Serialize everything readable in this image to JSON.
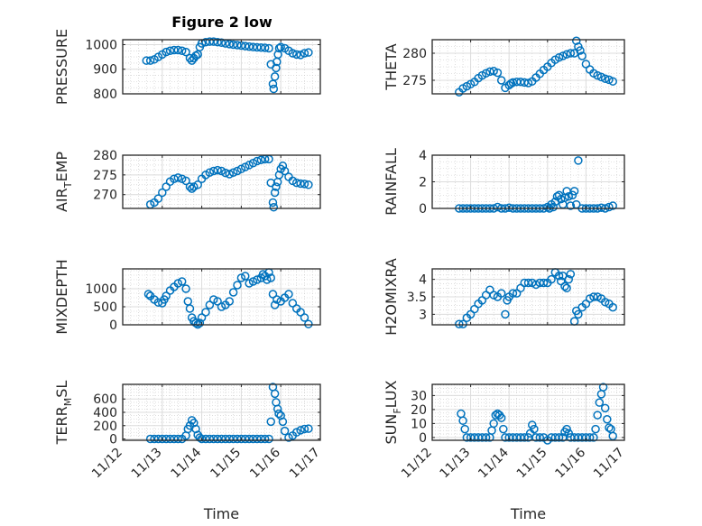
{
  "figure": {
    "title": "Figure 2 low",
    "marker_color": "#0072BD",
    "axes_color": "#262626",
    "grid_color": "#dcdcdc"
  },
  "chart_data": [
    {
      "type": "scatter",
      "id": "pressure",
      "title": "Figure 2 low",
      "ylabel": "PRESSURE",
      "ylabel_main": "PRESSURE",
      "ylabel_sub": "",
      "ylabel_tail": "",
      "xlabel": "",
      "xlim": [
        12,
        17
      ],
      "ylim": [
        800,
        1020
      ],
      "yticks": [
        800,
        900,
        1000
      ],
      "ytick_labels": [
        "800",
        "900",
        "1000"
      ],
      "xticks": [
        12,
        13,
        14,
        15,
        16,
        17
      ],
      "xtick_labels": [],
      "grid": true,
      "minor_grid": true,
      "x": [
        12.6,
        12.7,
        12.8,
        12.9,
        13.0,
        13.1,
        13.2,
        13.3,
        13.4,
        13.5,
        13.6,
        13.7,
        13.75,
        13.8,
        13.85,
        13.9,
        13.95,
        14.0,
        14.1,
        14.2,
        14.3,
        14.4,
        14.5,
        14.6,
        14.7,
        14.8,
        14.9,
        15.0,
        15.1,
        15.2,
        15.3,
        15.4,
        15.5,
        15.6,
        15.7,
        15.75,
        15.8,
        15.82,
        15.85,
        15.88,
        15.9,
        15.93,
        15.96,
        16.0,
        16.1,
        16.2,
        16.3,
        16.4,
        16.5,
        16.6,
        16.7
      ],
      "y": [
        935,
        935,
        940,
        950,
        960,
        970,
        975,
        978,
        978,
        975,
        970,
        945,
        935,
        945,
        955,
        960,
        990,
        1005,
        1010,
        1012,
        1012,
        1010,
        1008,
        1005,
        1002,
        1000,
        998,
        996,
        994,
        992,
        990,
        989,
        988,
        987,
        985,
        920,
        840,
        820,
        870,
        905,
        930,
        960,
        985,
        990,
        985,
        975,
        965,
        960,
        958,
        965,
        968
      ]
    },
    {
      "type": "scatter",
      "id": "theta",
      "ylabel": "THETA",
      "ylabel_main": "THETA",
      "ylabel_sub": "",
      "ylabel_tail": "",
      "xlabel": "",
      "xlim": [
        12,
        17
      ],
      "ylim": [
        272.5,
        282.5
      ],
      "yticks": [
        275,
        280
      ],
      "ytick_labels": [
        "275",
        "280"
      ],
      "xticks": [
        12,
        13,
        14,
        15,
        16,
        17
      ],
      "xtick_labels": [],
      "grid": true,
      "minor_grid": true,
      "x": [
        12.7,
        12.8,
        12.9,
        13.0,
        13.1,
        13.2,
        13.3,
        13.4,
        13.5,
        13.6,
        13.7,
        13.8,
        13.9,
        14.0,
        14.05,
        14.1,
        14.2,
        14.3,
        14.4,
        14.5,
        14.6,
        14.7,
        14.8,
        14.9,
        15.0,
        15.1,
        15.2,
        15.3,
        15.4,
        15.5,
        15.6,
        15.7,
        15.75,
        15.8,
        15.85,
        15.9,
        16.0,
        16.1,
        16.2,
        16.3,
        16.4,
        16.5,
        16.6,
        16.7
      ],
      "y": [
        272.8,
        273.5,
        273.9,
        274.3,
        274.7,
        275.4,
        275.9,
        276.3,
        276.6,
        276.7,
        276.4,
        275.0,
        273.6,
        274.1,
        274.4,
        274.6,
        274.7,
        274.7,
        274.6,
        274.5,
        274.8,
        275.5,
        276.2,
        276.9,
        277.5,
        278.2,
        278.8,
        279.2,
        279.5,
        279.8,
        280.0,
        280.0,
        282.3,
        281.2,
        280.5,
        279.5,
        278.0,
        277.0,
        276.3,
        275.9,
        275.6,
        275.3,
        275.1,
        274.8
      ]
    },
    {
      "type": "scatter",
      "id": "air-temp",
      "ylabel": "AIR_TEMP",
      "ylabel_main": "AIR",
      "ylabel_sub": "T",
      "ylabel_tail": "EMP",
      "xlabel": "",
      "xlim": [
        12,
        17
      ],
      "ylim": [
        266.5,
        280
      ],
      "yticks": [
        270,
        275,
        280
      ],
      "ytick_labels": [
        "270",
        "275",
        "280"
      ],
      "xticks": [
        12,
        13,
        14,
        15,
        16,
        17
      ],
      "xtick_labels": [],
      "grid": true,
      "minor_grid": true,
      "x": [
        12.7,
        12.8,
        12.9,
        13.0,
        13.1,
        13.2,
        13.3,
        13.4,
        13.5,
        13.6,
        13.7,
        13.75,
        13.8,
        13.9,
        14.0,
        14.1,
        14.2,
        14.3,
        14.4,
        14.5,
        14.6,
        14.7,
        14.8,
        14.9,
        15.0,
        15.1,
        15.2,
        15.3,
        15.4,
        15.5,
        15.6,
        15.7,
        15.75,
        15.8,
        15.82,
        15.85,
        15.88,
        15.92,
        15.96,
        16.0,
        16.05,
        16.1,
        16.2,
        16.3,
        16.4,
        16.5,
        16.6,
        16.7
      ],
      "y": [
        267.5,
        268.0,
        269.0,
        270.5,
        272.0,
        273.3,
        274.0,
        274.3,
        274.0,
        273.5,
        272.0,
        271.5,
        272.0,
        272.5,
        274.0,
        275.0,
        275.6,
        276.0,
        276.2,
        276.0,
        275.5,
        275.2,
        275.6,
        276.0,
        276.5,
        277.0,
        277.5,
        278.0,
        278.5,
        278.8,
        279.0,
        279.0,
        273.0,
        268.0,
        266.8,
        270.5,
        272.0,
        273.2,
        275.0,
        276.5,
        277.3,
        276.0,
        274.5,
        273.5,
        273.0,
        272.8,
        272.7,
        272.5
      ]
    },
    {
      "type": "scatter",
      "id": "rainfall",
      "ylabel": "RAINFALL",
      "ylabel_main": "RAINFALL",
      "ylabel_sub": "",
      "ylabel_tail": "",
      "xlabel": "",
      "xlim": [
        12,
        17
      ],
      "ylim": [
        0,
        4
      ],
      "yticks": [
        0,
        2,
        4
      ],
      "ytick_labels": [
        "0",
        "2",
        "4"
      ],
      "xticks": [
        12,
        13,
        14,
        15,
        16,
        17
      ],
      "xtick_labels": [],
      "grid": true,
      "minor_grid": true,
      "x": [
        12.7,
        12.8,
        12.9,
        13.0,
        13.1,
        13.2,
        13.3,
        13.4,
        13.5,
        13.6,
        13.7,
        13.8,
        13.9,
        14.0,
        14.1,
        14.2,
        14.3,
        14.4,
        14.5,
        14.6,
        14.7,
        14.8,
        14.9,
        15.0,
        15.05,
        15.1,
        15.15,
        15.2,
        15.25,
        15.3,
        15.35,
        15.4,
        15.45,
        15.5,
        15.55,
        15.6,
        15.65,
        15.7,
        15.75,
        15.8,
        15.9,
        16.0,
        16.1,
        16.2,
        16.3,
        16.4,
        16.5,
        16.6,
        16.7
      ],
      "y": [
        0,
        0,
        0,
        0,
        0,
        0,
        0,
        0,
        0,
        0,
        0.1,
        0,
        0,
        0.05,
        0,
        0,
        0,
        0,
        0,
        0,
        0,
        0,
        0,
        0.1,
        0,
        0.3,
        0.1,
        0.5,
        0.9,
        1.0,
        0.7,
        0.3,
        0.8,
        1.3,
        0.9,
        0.2,
        1.0,
        1.3,
        0.3,
        3.6,
        0,
        0,
        0,
        0,
        0,
        0.05,
        0,
        0.1,
        0.2
      ]
    },
    {
      "type": "scatter",
      "id": "mixdepth",
      "ylabel": "MIXDEPTH",
      "ylabel_main": "MIXDEPTH",
      "ylabel_sub": "",
      "ylabel_tail": "",
      "xlabel": "",
      "xlim": [
        12,
        17
      ],
      "ylim": [
        0,
        1550
      ],
      "yticks": [
        0,
        500,
        1000
      ],
      "ytick_labels": [
        "0",
        "500",
        "1000"
      ],
      "xticks": [
        12,
        13,
        14,
        15,
        16,
        17
      ],
      "xtick_labels": [],
      "grid": true,
      "minor_grid": true,
      "x": [
        12.65,
        12.7,
        12.8,
        12.9,
        13.0,
        13.05,
        13.1,
        13.2,
        13.3,
        13.4,
        13.5,
        13.6,
        13.65,
        13.7,
        13.75,
        13.8,
        13.85,
        13.9,
        13.95,
        14.0,
        14.1,
        14.2,
        14.3,
        14.4,
        14.5,
        14.6,
        14.7,
        14.8,
        14.9,
        15.0,
        15.1,
        15.2,
        15.3,
        15.4,
        15.5,
        15.55,
        15.6,
        15.65,
        15.7,
        15.75,
        15.8,
        15.85,
        15.9,
        16.0,
        16.1,
        16.2,
        16.3,
        16.4,
        16.5,
        16.6,
        16.7
      ],
      "y": [
        850,
        800,
        700,
        620,
        600,
        700,
        800,
        950,
        1050,
        1150,
        1200,
        1000,
        650,
        450,
        200,
        100,
        50,
        10,
        50,
        200,
        350,
        550,
        700,
        650,
        500,
        550,
        650,
        900,
        1100,
        1300,
        1350,
        1150,
        1200,
        1250,
        1300,
        1400,
        1350,
        1250,
        1450,
        1300,
        850,
        550,
        700,
        650,
        750,
        850,
        600,
        450,
        350,
        200,
        20
      ]
    },
    {
      "type": "scatter",
      "id": "h2o-mixratio",
      "ylabel": "H2OMIXRA",
      "ylabel_main": "H2OMIXRA",
      "ylabel_sub": "",
      "ylabel_tail": "",
      "xlabel": "",
      "xlim": [
        12,
        17
      ],
      "ylim": [
        2.7,
        4.3
      ],
      "yticks": [
        3,
        3.5,
        4
      ],
      "ytick_labels": [
        "3",
        "3.5",
        "4"
      ],
      "xticks": [
        12,
        13,
        14,
        15,
        16,
        17
      ],
      "xtick_labels": [],
      "grid": true,
      "minor_grid": true,
      "x": [
        12.7,
        12.8,
        12.9,
        13.0,
        13.1,
        13.2,
        13.3,
        13.4,
        13.5,
        13.6,
        13.7,
        13.8,
        13.9,
        13.95,
        14.0,
        14.1,
        14.2,
        14.3,
        14.4,
        14.5,
        14.6,
        14.7,
        14.8,
        14.9,
        15.0,
        15.1,
        15.2,
        15.3,
        15.35,
        15.4,
        15.45,
        15.5,
        15.55,
        15.6,
        15.7,
        15.75,
        15.8,
        15.9,
        16.0,
        16.1,
        16.2,
        16.3,
        16.4,
        16.5,
        16.6,
        16.7
      ],
      "y": [
        2.72,
        2.72,
        2.9,
        3.0,
        3.15,
        3.3,
        3.4,
        3.55,
        3.7,
        3.55,
        3.5,
        3.6,
        3.0,
        3.4,
        3.5,
        3.6,
        3.6,
        3.75,
        3.9,
        3.9,
        3.9,
        3.85,
        3.9,
        3.9,
        3.9,
        4.0,
        4.2,
        4.1,
        3.95,
        4.1,
        3.8,
        3.75,
        4.0,
        4.15,
        2.8,
        3.1,
        3.0,
        3.2,
        3.3,
        3.45,
        3.5,
        3.5,
        3.45,
        3.35,
        3.3,
        3.2
      ]
    },
    {
      "type": "scatter",
      "id": "terr-msl",
      "ylabel": "TERR_MSL",
      "ylabel_main": "TERR",
      "ylabel_sub": "M",
      "ylabel_tail": "SL",
      "xlabel": "Time",
      "xlim": [
        12,
        17
      ],
      "ylim": [
        -20,
        820
      ],
      "yticks": [
        0,
        200,
        400,
        600
      ],
      "ytick_labels": [
        "0",
        "200",
        "400",
        "600"
      ],
      "xticks": [
        12,
        13,
        14,
        15,
        16,
        17
      ],
      "xtick_labels": [
        "11/12",
        "11/13",
        "11/14",
        "11/15",
        "11/16",
        "11/17"
      ],
      "grid": true,
      "minor_grid": true,
      "x": [
        12.7,
        12.8,
        12.9,
        13.0,
        13.1,
        13.2,
        13.3,
        13.4,
        13.5,
        13.6,
        13.65,
        13.7,
        13.75,
        13.8,
        13.85,
        13.9,
        13.95,
        14.0,
        14.1,
        14.2,
        14.3,
        14.4,
        14.5,
        14.6,
        14.7,
        14.8,
        14.9,
        15.0,
        15.1,
        15.2,
        15.3,
        15.4,
        15.5,
        15.6,
        15.7,
        15.75,
        15.8,
        15.85,
        15.88,
        15.92,
        15.95,
        16.0,
        16.05,
        16.1,
        16.2,
        16.3,
        16.4,
        16.5,
        16.6,
        16.7
      ],
      "y": [
        0,
        0,
        0,
        0,
        0,
        0,
        0,
        0,
        0,
        50,
        150,
        200,
        280,
        240,
        150,
        60,
        20,
        0,
        0,
        0,
        0,
        0,
        0,
        0,
        0,
        0,
        0,
        0,
        0,
        0,
        0,
        0,
        0,
        0,
        0,
        260,
        780,
        680,
        550,
        450,
        380,
        350,
        260,
        120,
        20,
        50,
        100,
        130,
        150,
        155
      ]
    },
    {
      "type": "scatter",
      "id": "sun-flux",
      "ylabel": "SUN_FLUX",
      "ylabel_main": "SUN",
      "ylabel_sub": "F",
      "ylabel_tail": "LUX",
      "xlabel": "Time",
      "xlim": [
        12,
        17
      ],
      "ylim": [
        -2,
        38
      ],
      "yticks": [
        0,
        10,
        20,
        30
      ],
      "ytick_labels": [
        "0",
        "10",
        "20",
        "30"
      ],
      "xticks": [
        12,
        13,
        14,
        15,
        16,
        17
      ],
      "xtick_labels": [
        "11/12",
        "11/13",
        "11/14",
        "11/15",
        "11/16",
        "11/17"
      ],
      "grid": true,
      "minor_grid": true,
      "x": [
        12.75,
        12.8,
        12.85,
        12.9,
        13.0,
        13.1,
        13.2,
        13.3,
        13.4,
        13.5,
        13.55,
        13.6,
        13.65,
        13.7,
        13.75,
        13.8,
        13.85,
        13.9,
        14.0,
        14.1,
        14.2,
        14.3,
        14.4,
        14.5,
        14.55,
        14.6,
        14.65,
        14.7,
        14.8,
        14.9,
        15.0,
        15.1,
        15.2,
        15.3,
        15.4,
        15.45,
        15.5,
        15.55,
        15.6,
        15.7,
        15.8,
        15.9,
        16.0,
        16.1,
        16.2,
        16.25,
        16.3,
        16.35,
        16.4,
        16.45,
        16.5,
        16.55,
        16.6,
        16.65,
        16.7
      ],
      "y": [
        17,
        12,
        6,
        0,
        0,
        0,
        0,
        0,
        0,
        0,
        5,
        10,
        16,
        17,
        16,
        14,
        6,
        0,
        0,
        0,
        0,
        0,
        0,
        0,
        3,
        9,
        6,
        0,
        0,
        0,
        -2,
        0,
        0,
        0,
        0,
        4,
        6,
        3,
        0,
        0,
        0,
        0,
        0,
        0,
        0,
        6,
        16,
        25,
        31,
        36,
        21,
        13,
        7,
        6,
        1
      ]
    }
  ]
}
